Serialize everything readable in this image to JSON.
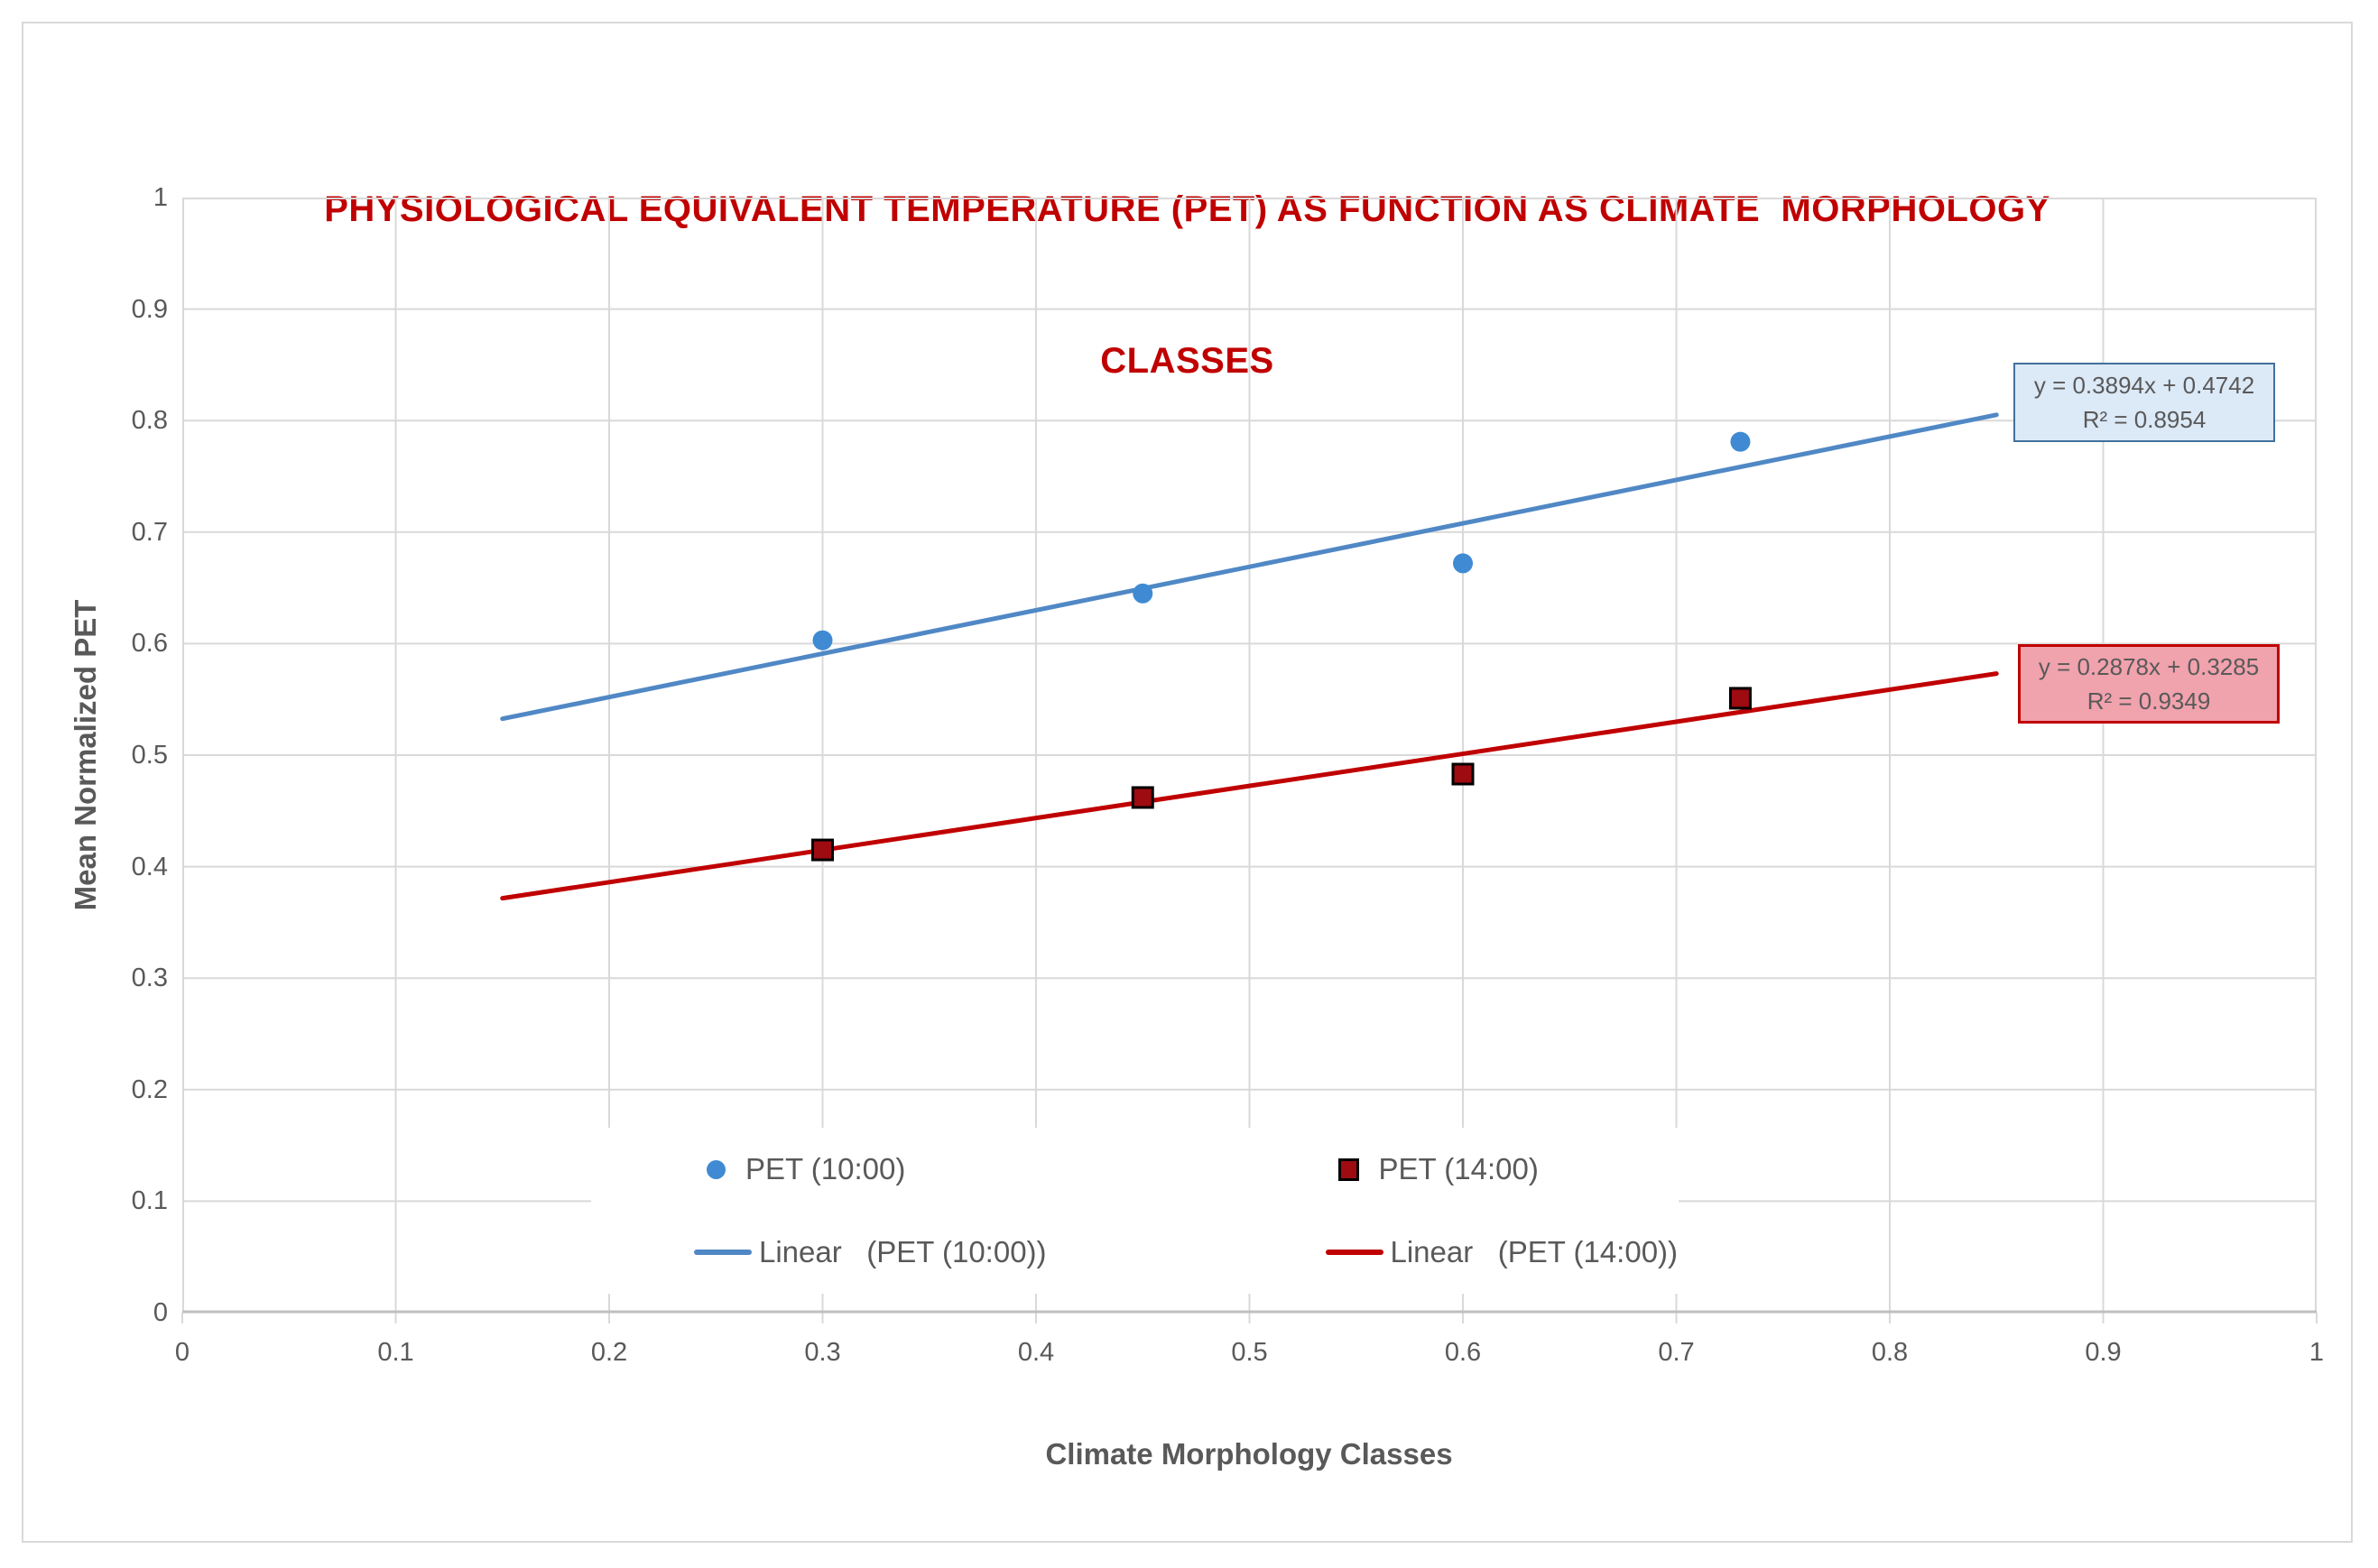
{
  "chart_title_lines": [
    "PHYSIOLOGICAL EQUIVALENT TEMPERATURE (PET) AS FUNCTION AS CLIMATE  MORPHOLOGY",
    "CLASSES"
  ],
  "colors": {
    "title": "#c00000",
    "axis_text": "#595959",
    "gridline": "#d9d9d9",
    "axis_line": "#bfbfbf",
    "frame_border": "#d9d9d9"
  },
  "chart_data": {
    "type": "scatter",
    "title": "PHYSIOLOGICAL EQUIVALENT TEMPERATURE (PET) AS FUNCTION AS CLIMATE MORPHOLOGY CLASSES",
    "xlabel": "Climate Morphology Classes",
    "ylabel": "Mean Normalized PET",
    "xlim": [
      0,
      1
    ],
    "ylim": [
      0,
      1
    ],
    "xticks": [
      "0",
      "0.1",
      "0.2",
      "0.3",
      "0.4",
      "0.5",
      "0.6",
      "0.7",
      "0.8",
      "0.9",
      "1"
    ],
    "yticks": [
      "0",
      "0.1",
      "0.2",
      "0.3",
      "0.4",
      "0.5",
      "0.6",
      "0.7",
      "0.8",
      "0.9",
      "1"
    ],
    "grid": true,
    "legend_position": "inside-bottom-center",
    "series": [
      {
        "name": "PET (10:00)",
        "marker": "circle",
        "color": "#3f8ad3",
        "points": [
          [
            0.3,
            0.603
          ],
          [
            0.45,
            0.645
          ],
          [
            0.6,
            0.672
          ],
          [
            0.73,
            0.781
          ]
        ]
      },
      {
        "name": "PET (14:00)",
        "marker": "square",
        "color": "#9e0b10",
        "points": [
          [
            0.3,
            0.415
          ],
          [
            0.45,
            0.462
          ],
          [
            0.6,
            0.483
          ],
          [
            0.73,
            0.551
          ]
        ]
      }
    ],
    "trendlines": [
      {
        "name": "Linear   (PET (10:00))",
        "slope": 0.3894,
        "intercept": 0.4742,
        "x_range": [
          0.15,
          0.85
        ],
        "color": "#5088c5",
        "equation": "y = 0.3894x + 0.4742",
        "r2_label": "R² = 0.8954",
        "box_fill": "#dce9f7",
        "box_border": "#41719c"
      },
      {
        "name": "Linear   (PET (14:00))",
        "slope": 0.2878,
        "intercept": 0.3285,
        "x_range": [
          0.15,
          0.85
        ],
        "color": "#c00000",
        "equation": "y = 0.2878x + 0.3285",
        "r2_label": "R² = 0.9349",
        "box_fill": "#f0a2ad",
        "box_border": "#c00000"
      }
    ]
  }
}
